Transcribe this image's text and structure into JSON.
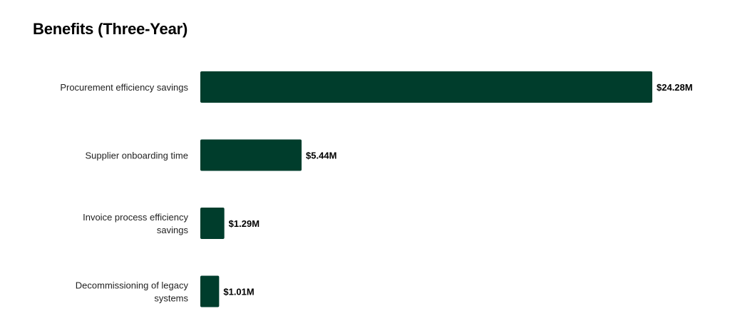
{
  "chart_data": {
    "type": "bar",
    "orientation": "horizontal",
    "title": "Benefits (Three-Year)",
    "categories": [
      [
        "Procurement efficiency savings"
      ],
      [
        "Supplier onboarding time"
      ],
      [
        "Invoice process efficiency",
        "savings"
      ],
      [
        "Decommissioning of legacy",
        "systems"
      ]
    ],
    "values": [
      24.28,
      5.44,
      1.29,
      1.01
    ],
    "value_labels": [
      "$24.28M",
      "$5.44M",
      "$1.29M",
      "$1.01M"
    ],
    "unit": "$M",
    "bar_color": "#003D2C",
    "grid": false,
    "legend": "none"
  }
}
